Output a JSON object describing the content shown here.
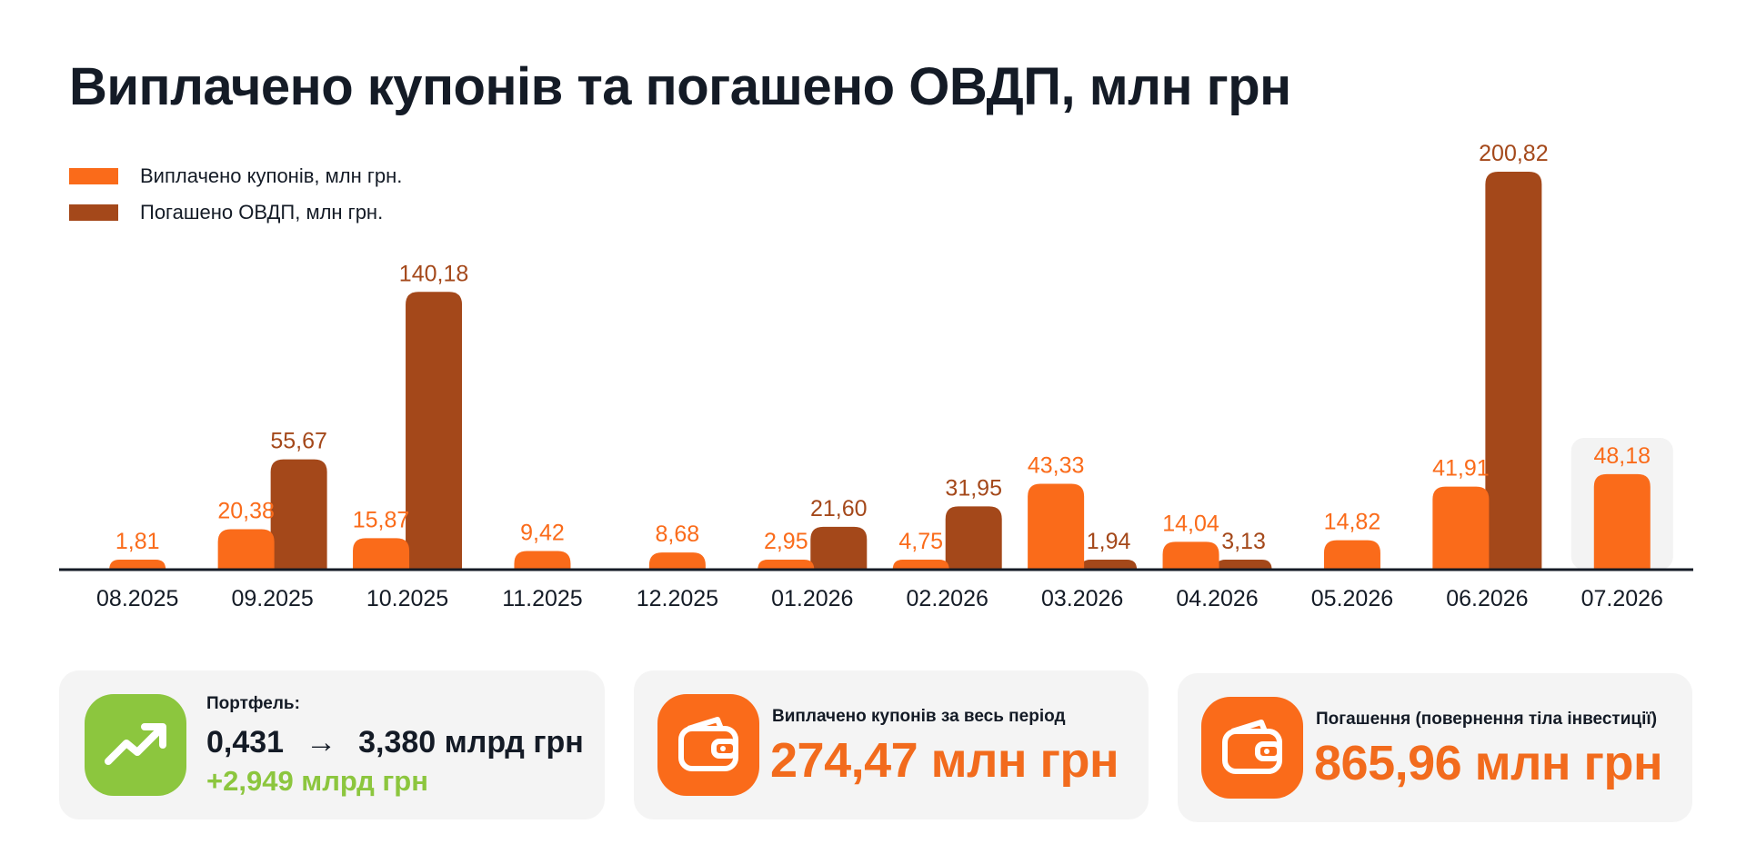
{
  "title": "Виплачено купонів та погашено ОВДП, млн грн",
  "colors": {
    "coupons": "#fa6b1a",
    "redemptions": "#a4481a",
    "green": "#8cc63e",
    "text": "#141b26",
    "card_bg": "#f4f4f4"
  },
  "chart_data": {
    "type": "bar",
    "categories": [
      "08.2025",
      "09.2025",
      "10.2025",
      "11.2025",
      "12.2025",
      "01.2026",
      "02.2026",
      "03.2026",
      "04.2026",
      "05.2026",
      "06.2026",
      "07.2026"
    ],
    "series": [
      {
        "name": "Виплачено купонів, млн грн.",
        "values": [
          1.81,
          20.38,
          15.87,
          9.42,
          8.68,
          2.95,
          4.75,
          43.33,
          14.04,
          14.82,
          41.91,
          48.18
        ],
        "labels": [
          "1,81",
          "20,38",
          "15,87",
          "9,42",
          "8,68",
          "2,95",
          "4,75",
          "43,33",
          "14,04",
          "14,82",
          "41,91",
          "48,18"
        ]
      },
      {
        "name": "Погашено ОВДП, млн грн.",
        "values": [
          null,
          55.67,
          140.18,
          null,
          null,
          21.6,
          31.95,
          1.94,
          3.13,
          null,
          200.82,
          null
        ],
        "labels": [
          "",
          "55,67",
          "140,18",
          "",
          "",
          "21,60",
          "31,95",
          "1,94",
          "3,13",
          "",
          "200,82",
          ""
        ]
      }
    ],
    "highlighted_category": "07.2026",
    "ylim": [
      0,
      200.82
    ]
  },
  "cards": {
    "portfolio": {
      "caption": "Портфель:",
      "from": "0,431",
      "arrow": "→",
      "to": "3,380 млрд грн",
      "delta": "+2,949 млрд грн",
      "icon": "trend-up-icon"
    },
    "coupons": {
      "caption": "Виплачено купонів за весь період",
      "value": "274,47 млн грн",
      "icon": "wallet-icon"
    },
    "redemptions": {
      "caption": "Погашення (повернення тіла інвестиції)",
      "value": "865,96 млн грн",
      "icon": "wallet-icon"
    }
  }
}
